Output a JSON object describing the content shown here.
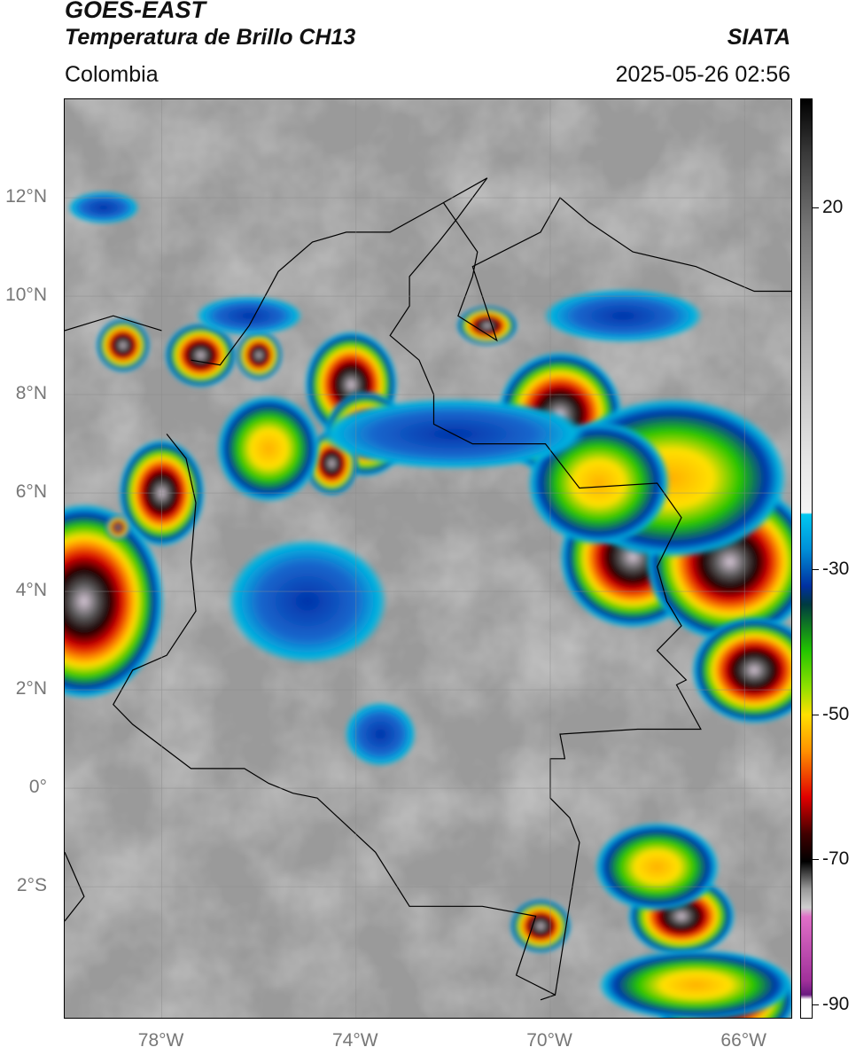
{
  "header": {
    "satellite": "GOES-EAST",
    "product": "Temperatura de Brillo CH13",
    "region": "Colombia",
    "agency": "SIATA",
    "datetime": "2025-05-26 02:56"
  },
  "map": {
    "lat_range": [
      -4.7,
      14.0
    ],
    "lon_range": [
      -80.0,
      -65.0
    ],
    "lat_ticks": [
      {
        "value": 12,
        "label": "12°N"
      },
      {
        "value": 10,
        "label": "10°N"
      },
      {
        "value": 8,
        "label": "8°N"
      },
      {
        "value": 6,
        "label": "6°N"
      },
      {
        "value": 4,
        "label": "4°N"
      },
      {
        "value": 2,
        "label": "2°N"
      },
      {
        "value": 0,
        "label": "0°"
      },
      {
        "value": -2,
        "label": "2°S"
      }
    ],
    "lon_ticks": [
      {
        "value": -78,
        "label": "78°W"
      },
      {
        "value": -74,
        "label": "74°W"
      },
      {
        "value": -70,
        "label": "70°W"
      },
      {
        "value": -66,
        "label": "66°W"
      }
    ],
    "colors": {
      "background_cloud": "#bdbdbd",
      "deep_convection_core": "#1a0000",
      "red": "#d40000",
      "orange": "#ff8c00",
      "yellow": "#ffe000",
      "green": "#22c400",
      "blue": "#0033aa",
      "cyan": "#00b4e0",
      "pink": "#e070c8",
      "border_line": "#000000"
    }
  },
  "colorbar": {
    "range": [
      -92,
      35
    ],
    "ticks": [
      {
        "value": 20,
        "label": "20"
      },
      {
        "value": -30,
        "label": "-30"
      },
      {
        "value": -50,
        "label": "-50"
      },
      {
        "value": -70,
        "label": "-70"
      },
      {
        "value": -90,
        "label": "-90"
      }
    ]
  }
}
